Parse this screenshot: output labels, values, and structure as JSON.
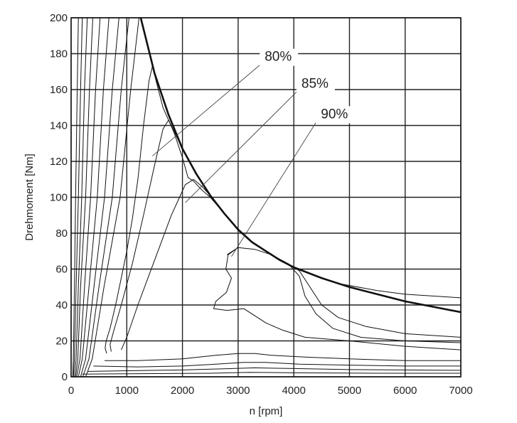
{
  "chart_data": {
    "type": "line",
    "title": "",
    "xlabel": "n [rpm]",
    "ylabel": "Drehmoment   [Nm]",
    "xlim": [
      0,
      7000
    ],
    "ylim": [
      0,
      200
    ],
    "xticks": [
      0,
      1000,
      2000,
      3000,
      4000,
      5000,
      6000,
      7000
    ],
    "yticks": [
      0,
      20,
      40,
      60,
      80,
      100,
      120,
      140,
      160,
      180,
      200
    ],
    "grid": true,
    "series": [
      {
        "points": [
          [
            1250,
            200
          ],
          [
            1500,
            169
          ],
          [
            1750,
            146
          ],
          [
            2000,
            127
          ],
          [
            2250,
            113
          ],
          [
            2500,
            101
          ],
          [
            2750,
            91
          ],
          [
            3000,
            82
          ],
          [
            3250,
            75
          ],
          [
            3500,
            70
          ],
          [
            3750,
            65
          ],
          [
            4000,
            61
          ],
          [
            4500,
            55
          ],
          [
            5000,
            50
          ],
          [
            5500,
            46
          ],
          [
            6000,
            42
          ],
          [
            6500,
            39
          ],
          [
            7000,
            36
          ]
        ]
      },
      {
        "points": [
          [
            640,
            13
          ],
          [
            610,
            16
          ],
          [
            630,
            20
          ],
          [
            700,
            27
          ],
          [
            800,
            40
          ],
          [
            900,
            55
          ],
          [
            1000,
            70
          ],
          [
            1100,
            88
          ],
          [
            1200,
            110
          ],
          [
            1300,
            140
          ],
          [
            1400,
            165
          ],
          [
            1460,
            173
          ],
          [
            1550,
            162
          ],
          [
            1650,
            150
          ],
          [
            1750,
            143
          ],
          [
            2000,
            127
          ],
          [
            2250,
            113
          ],
          [
            2500,
            101
          ],
          [
            2750,
            91
          ],
          [
            3000,
            82
          ],
          [
            3250,
            75
          ],
          [
            3500,
            70
          ],
          [
            3750,
            65
          ],
          [
            4000,
            61
          ],
          [
            4500,
            55
          ],
          [
            5000,
            50
          ],
          [
            5500,
            46
          ],
          [
            6000,
            42
          ],
          [
            6500,
            39
          ],
          [
            7000,
            36
          ]
        ]
      },
      {
        "points": [
          [
            720,
            14
          ],
          [
            700,
            18
          ],
          [
            760,
            25
          ],
          [
            900,
            40
          ],
          [
            1100,
            63
          ],
          [
            1300,
            90
          ],
          [
            1500,
            118
          ],
          [
            1650,
            138
          ],
          [
            1750,
            143
          ],
          [
            1850,
            136
          ],
          [
            2000,
            122
          ],
          [
            2100,
            111
          ],
          [
            2200,
            109
          ],
          [
            2350,
            104
          ],
          [
            2500,
            100
          ],
          [
            2750,
            91
          ],
          [
            3000,
            82
          ],
          [
            3250,
            75
          ],
          [
            3500,
            70
          ],
          [
            3750,
            65
          ],
          [
            4000,
            61
          ],
          [
            4400,
            56
          ],
          [
            4800,
            52
          ],
          [
            5500,
            48
          ],
          [
            6000,
            46
          ],
          [
            6500,
            45
          ],
          [
            7000,
            44
          ]
        ]
      },
      {
        "points": [
          [
            900,
            15
          ],
          [
            1000,
            22
          ],
          [
            1200,
            40
          ],
          [
            1500,
            65
          ],
          [
            1800,
            90
          ],
          [
            2050,
            107
          ],
          [
            2200,
            110
          ],
          [
            2350,
            106
          ],
          [
            2500,
            101
          ],
          [
            2750,
            91
          ],
          [
            3000,
            82
          ],
          [
            3250,
            75
          ],
          [
            3500,
            70
          ],
          [
            3750,
            65
          ],
          [
            3900,
            63
          ],
          [
            4100,
            59
          ],
          [
            4500,
            40
          ],
          [
            4800,
            33
          ],
          [
            5300,
            28
          ],
          [
            6000,
            24
          ],
          [
            7000,
            22
          ]
        ]
      },
      {
        "points": [
          [
            2800,
            68
          ],
          [
            3000,
            72
          ],
          [
            3300,
            71
          ],
          [
            3600,
            68
          ],
          [
            3900,
            63
          ],
          [
            4100,
            56
          ],
          [
            4200,
            45
          ],
          [
            4400,
            35
          ],
          [
            4700,
            27
          ],
          [
            5200,
            22
          ],
          [
            6000,
            20
          ],
          [
            7000,
            19
          ]
        ]
      },
      {
        "points": [
          [
            3000,
            72
          ],
          [
            2820,
            68
          ],
          [
            2780,
            60
          ],
          [
            2880,
            55
          ],
          [
            2790,
            47
          ],
          [
            2600,
            42
          ],
          [
            2560,
            38
          ],
          [
            2800,
            37
          ],
          [
            3100,
            38
          ],
          [
            3250,
            35
          ],
          [
            3500,
            30
          ],
          [
            3800,
            26
          ],
          [
            4200,
            22
          ],
          [
            5000,
            20
          ],
          [
            6000,
            17
          ],
          [
            7000,
            15
          ]
        ]
      },
      {
        "points": [
          [
            600,
            9
          ],
          [
            1200,
            9
          ],
          [
            2000,
            10
          ],
          [
            2600,
            12
          ],
          [
            3000,
            13
          ],
          [
            3300,
            13
          ],
          [
            3600,
            12
          ],
          [
            4200,
            11
          ],
          [
            5000,
            10
          ],
          [
            6000,
            9
          ],
          [
            7000,
            9
          ]
        ]
      },
      {
        "points": [
          [
            400,
            6
          ],
          [
            1200,
            5.5
          ],
          [
            2000,
            6
          ],
          [
            2600,
            7
          ],
          [
            3100,
            8
          ],
          [
            3500,
            8
          ],
          [
            4100,
            7
          ],
          [
            5000,
            6.5
          ],
          [
            6000,
            6
          ],
          [
            7000,
            6
          ]
        ]
      },
      {
        "points": [
          [
            300,
            3
          ],
          [
            1200,
            3.5
          ],
          [
            2000,
            3.8
          ],
          [
            2800,
            4.5
          ],
          [
            3300,
            5
          ],
          [
            4000,
            4.6
          ],
          [
            5000,
            4
          ],
          [
            6000,
            3.8
          ],
          [
            7000,
            3.6
          ]
        ]
      },
      {
        "points": [
          [
            200,
            1.5
          ],
          [
            1500,
            1.8
          ],
          [
            2500,
            2
          ],
          [
            3200,
            2.5
          ],
          [
            4000,
            2.2
          ],
          [
            5500,
            2
          ],
          [
            7000,
            2
          ]
        ]
      },
      {
        "points": [
          [
            30,
            0
          ],
          [
            40,
            10
          ],
          [
            60,
            50
          ],
          [
            80,
            100
          ],
          [
            110,
            160
          ],
          [
            130,
            200
          ]
        ]
      },
      {
        "points": [
          [
            40,
            0
          ],
          [
            60,
            10
          ],
          [
            90,
            50
          ],
          [
            130,
            100
          ],
          [
            170,
            160
          ],
          [
            200,
            200
          ]
        ]
      },
      {
        "points": [
          [
            60,
            0
          ],
          [
            90,
            10
          ],
          [
            130,
            50
          ],
          [
            190,
            100
          ],
          [
            240,
            160
          ],
          [
            290,
            200
          ]
        ]
      },
      {
        "points": [
          [
            80,
            0
          ],
          [
            120,
            10
          ],
          [
            170,
            50
          ],
          [
            260,
            100
          ],
          [
            330,
            160
          ],
          [
            390,
            200
          ]
        ]
      },
      {
        "points": [
          [
            100,
            0
          ],
          [
            160,
            10
          ],
          [
            240,
            50
          ],
          [
            350,
            100
          ],
          [
            440,
            160
          ],
          [
            520,
            200
          ]
        ]
      },
      {
        "points": [
          [
            130,
            0
          ],
          [
            200,
            10
          ],
          [
            320,
            50
          ],
          [
            470,
            100
          ],
          [
            580,
            160
          ],
          [
            680,
            200
          ]
        ]
      },
      {
        "points": [
          [
            170,
            0
          ],
          [
            260,
            10
          ],
          [
            410,
            50
          ],
          [
            600,
            100
          ],
          [
            740,
            160
          ],
          [
            860,
            200
          ]
        ]
      },
      {
        "points": [
          [
            210,
            0
          ],
          [
            320,
            10
          ],
          [
            500,
            50
          ],
          [
            740,
            100
          ],
          [
            900,
            160
          ],
          [
            1040,
            200
          ]
        ]
      },
      {
        "points": [
          [
            260,
            0
          ],
          [
            380,
            10
          ],
          [
            590,
            50
          ],
          [
            880,
            100
          ],
          [
            1070,
            160
          ],
          [
            1220,
            200
          ]
        ]
      }
    ],
    "annotations": [
      {
        "text": "80%",
        "x": 3720,
        "y": 176,
        "line_to": [
          1460,
          123
        ]
      },
      {
        "text": "85%",
        "x": 4380,
        "y": 161,
        "line_to": [
          2050,
          97
        ]
      },
      {
        "text": "90%",
        "x": 4730,
        "y": 144,
        "line_to": [
          2880,
          67
        ]
      }
    ]
  }
}
